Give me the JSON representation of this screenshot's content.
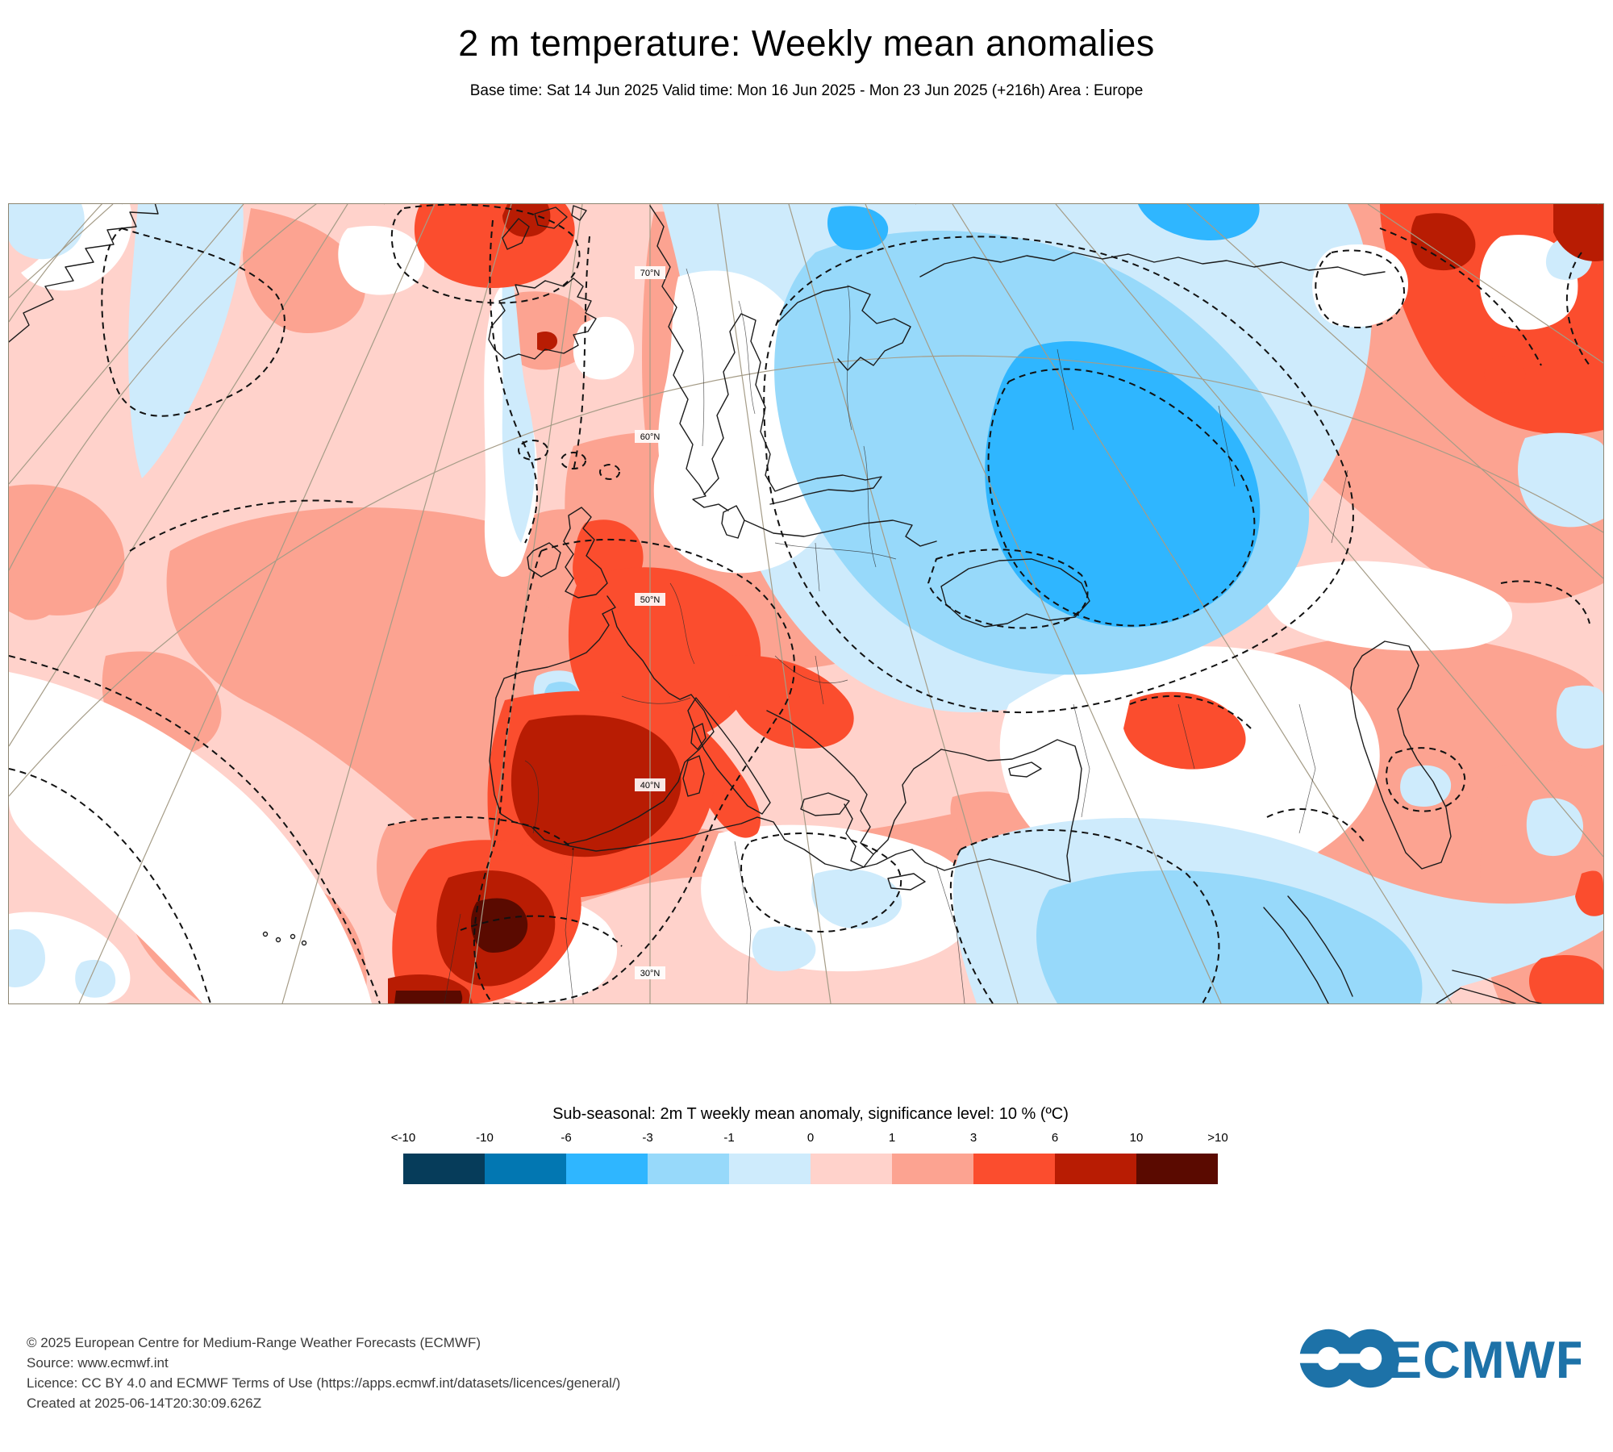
{
  "header": {
    "title": "2 m temperature: Weekly mean anomalies",
    "subtitle": "Base time: Sat 14 Jun 2025 Valid time: Mon 16 Jun 2025 - Mon 23 Jun 2025 (+216h) Area : Europe"
  },
  "map": {
    "grid_labels": [
      "70°N",
      "60°N",
      "50°N",
      "40°N",
      "30°N"
    ],
    "neutral_color": "#FFFFFF",
    "gridline_color": "#A59C87",
    "coastline_color": "#1B1B1B"
  },
  "legend": {
    "title": "Sub-seasonal: 2m T weekly mean anomaly, significance level: 10 % (ºC)",
    "tick_labels": [
      "<-10",
      "-10",
      "-6",
      "-3",
      "-1",
      "0",
      "1",
      "3",
      "6",
      "10",
      ">10"
    ],
    "colors": [
      "#063C5A",
      "#0277B2",
      "#2FB6FF",
      "#97D9FA",
      "#CEEBFC",
      "#FFD2CB",
      "#FCA391",
      "#FB4D2E",
      "#B81C03",
      "#5A0A00"
    ]
  },
  "footer": {
    "lines": [
      "© 2025 European Centre for Medium-Range Weather Forecasts (ECMWF)",
      "Source: www.ecmwf.int",
      "Licence: CC BY 4.0 and ECMWF Terms of Use (https://apps.ecmwf.int/datasets/licences/general/)",
      "Created at 2025-06-14T20:30:09.626Z"
    ]
  },
  "logo": {
    "text": "ECMWF",
    "color": "#1D72A8"
  }
}
